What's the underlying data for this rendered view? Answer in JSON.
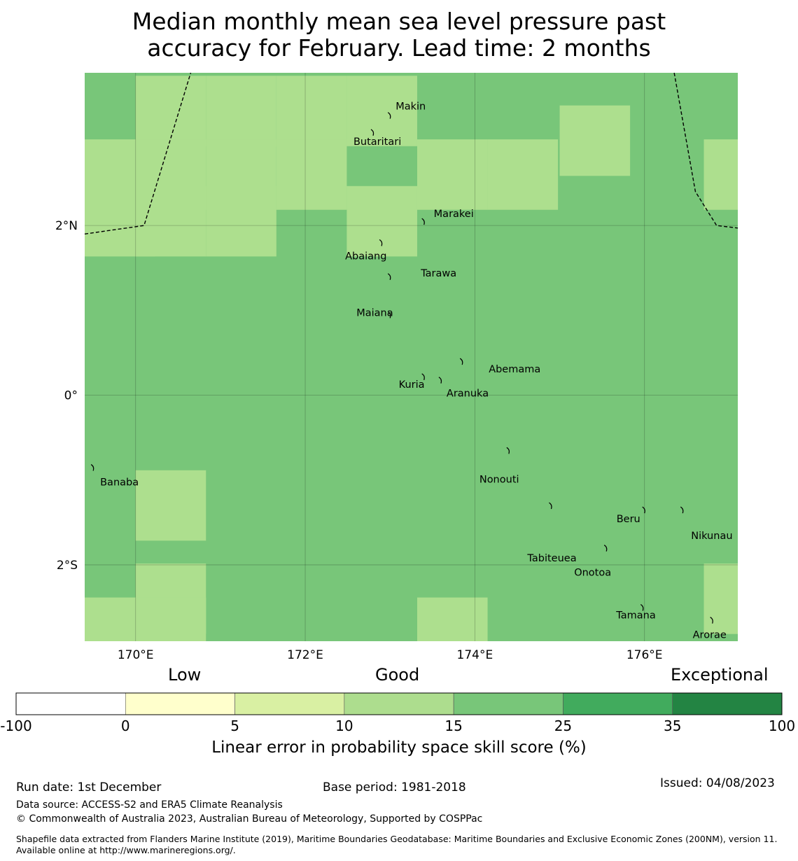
{
  "title": {
    "line1": "Median monthly mean sea level pressure past",
    "line2": "accuracy for February. Lead time: 2 months"
  },
  "colors": {
    "grid_cell_light": "#addf8e",
    "grid_cell_mid": "#78c679",
    "eez_line": "#000000"
  },
  "map": {
    "lon_range": [
      169.4,
      177.1
    ],
    "lat_range": [
      -2.9,
      3.8
    ],
    "lon_ticks": [
      {
        "value": 170,
        "label": "170°E"
      },
      {
        "value": 172,
        "label": "172°E"
      },
      {
        "value": 174,
        "label": "174°E"
      },
      {
        "value": 176,
        "label": "176°E"
      }
    ],
    "lat_ticks": [
      {
        "value": 2,
        "label": "2°N"
      },
      {
        "value": 0,
        "label": "0°"
      },
      {
        "value": -2,
        "label": "2°S"
      }
    ],
    "cell_size_deg": 0.83,
    "lighter_cells_lon_lat": [
      [
        170.0,
        3.35
      ],
      [
        170.83,
        3.35
      ],
      [
        171.66,
        3.35
      ],
      [
        172.49,
        3.35
      ],
      [
        175.0,
        3.0
      ],
      [
        169.4,
        2.6
      ],
      [
        170.0,
        2.6
      ],
      [
        170.83,
        2.6
      ],
      [
        171.66,
        2.6
      ],
      [
        173.32,
        2.6
      ],
      [
        174.15,
        2.6
      ],
      [
        176.7,
        2.6
      ],
      [
        169.4,
        2.05
      ],
      [
        170.0,
        2.05
      ],
      [
        170.83,
        2.05
      ],
      [
        172.49,
        2.05
      ],
      [
        170.0,
        -1.3
      ],
      [
        170.0,
        -2.4
      ],
      [
        176.7,
        -2.4
      ],
      [
        169.4,
        -2.8
      ],
      [
        170.0,
        -2.8
      ],
      [
        173.32,
        -2.8
      ]
    ],
    "islands": [
      {
        "name": "Makin",
        "lon": 173.0,
        "lat": 3.3
      },
      {
        "name": "Butaritari",
        "lon": 172.8,
        "lat": 3.1
      },
      {
        "name": "Marakei",
        "lon": 173.4,
        "lat": 2.05
      },
      {
        "name": "Abaiang",
        "lon": 172.9,
        "lat": 1.8
      },
      {
        "name": "Tarawa",
        "lon": 173.0,
        "lat": 1.4
      },
      {
        "name": "Maiana",
        "lon": 173.0,
        "lat": 0.95
      },
      {
        "name": "Abemama",
        "lon": 173.85,
        "lat": 0.4
      },
      {
        "name": "Kuria",
        "lon": 173.4,
        "lat": 0.22
      },
      {
        "name": "Aranuka",
        "lon": 173.6,
        "lat": 0.18
      },
      {
        "name": "Nonouti",
        "lon": 174.4,
        "lat": -0.65
      },
      {
        "name": "Banaba",
        "lon": 169.5,
        "lat": -0.85
      },
      {
        "name": "Tabiteuea",
        "lon": 174.9,
        "lat": -1.3
      },
      {
        "name": "Beru",
        "lon": 176.0,
        "lat": -1.35
      },
      {
        "name": "Nikunau",
        "lon": 176.45,
        "lat": -1.35
      },
      {
        "name": "Onotoa",
        "lon": 175.55,
        "lat": -1.8
      },
      {
        "name": "Tamana",
        "lon": 175.98,
        "lat": -2.5
      },
      {
        "name": "Arorae",
        "lon": 176.8,
        "lat": -2.65
      }
    ],
    "eez_boundaries": [
      {
        "name": "west",
        "points": [
          [
            169.4,
            1.9
          ],
          [
            170.1,
            2.0
          ],
          [
            170.65,
            3.8
          ]
        ]
      },
      {
        "name": "east",
        "points": [
          [
            176.35,
            3.8
          ],
          [
            176.6,
            2.4
          ],
          [
            176.85,
            2.0
          ],
          [
            177.1,
            1.97
          ]
        ]
      }
    ]
  },
  "colorbar": {
    "headings": {
      "low": "Low",
      "good": "Good",
      "exceptional": "Exceptional"
    },
    "segments": [
      {
        "color": "#ffffff"
      },
      {
        "color": "#ffffcc"
      },
      {
        "color": "#d9f0a3"
      },
      {
        "color": "#addd8e"
      },
      {
        "color": "#78c679"
      },
      {
        "color": "#41ab5d"
      },
      {
        "color": "#238443"
      }
    ],
    "ticks": [
      "-100",
      "0",
      "5",
      "10",
      "15",
      "25",
      "35",
      "100"
    ],
    "label": "Linear error in probability space skill score (%)"
  },
  "footer": {
    "run_date": "Run date: 1st December",
    "base_period": "Base period: 1981-2018",
    "issued": "Issued: 04/08/2023",
    "data_source": "Data source: ACCESS-S2 and ERA5 Climate Reanalysis",
    "copyright": "© Commonwealth of Australia 2023, Australian Bureau of Meteorology, Supported by COSPPac",
    "shapefile": "Shapefile data extracted from Flanders Marine Institute (2019), Maritime Boundaries Geodatabase: Maritime Boundaries and Exclusive Economic Zones (200NM), version 11. Available online at http://www.marineregions.org/."
  }
}
